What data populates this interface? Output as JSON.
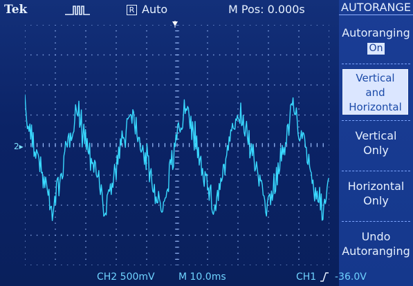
{
  "top_bar": {
    "brand": "Tek",
    "acq_state_icon": "trigger-waveform-icon",
    "mode_box": "R",
    "mode": "Auto",
    "m_pos": "M Pos: 0.000s"
  },
  "menu": {
    "title": "AUTORANGE",
    "autoranging": {
      "label": "Autoranging",
      "value": "On"
    },
    "vertical_and_horizontal": [
      "Vertical",
      "and",
      "Horizontal"
    ],
    "vertical_only": [
      "Vertical",
      "Only"
    ],
    "horizontal_only": [
      "Horizontal",
      "Only"
    ],
    "undo": [
      "Undo",
      "Autoranging"
    ]
  },
  "bottom_bar": {
    "ch2_scale": "CH2  500mV",
    "time_scale": "M 10.0ms",
    "trigger_source": "CH1",
    "trigger_slope_icon": "rising-edge-icon",
    "trigger_level": "-36.0V"
  },
  "ch2_marker": "2",
  "colors": {
    "trace": "#39d9ff",
    "screen_bg": "#0b2366",
    "menu_bg": "#1a3d95",
    "text": "#e7f1ff",
    "channel_text": "#6fd3ff"
  }
}
